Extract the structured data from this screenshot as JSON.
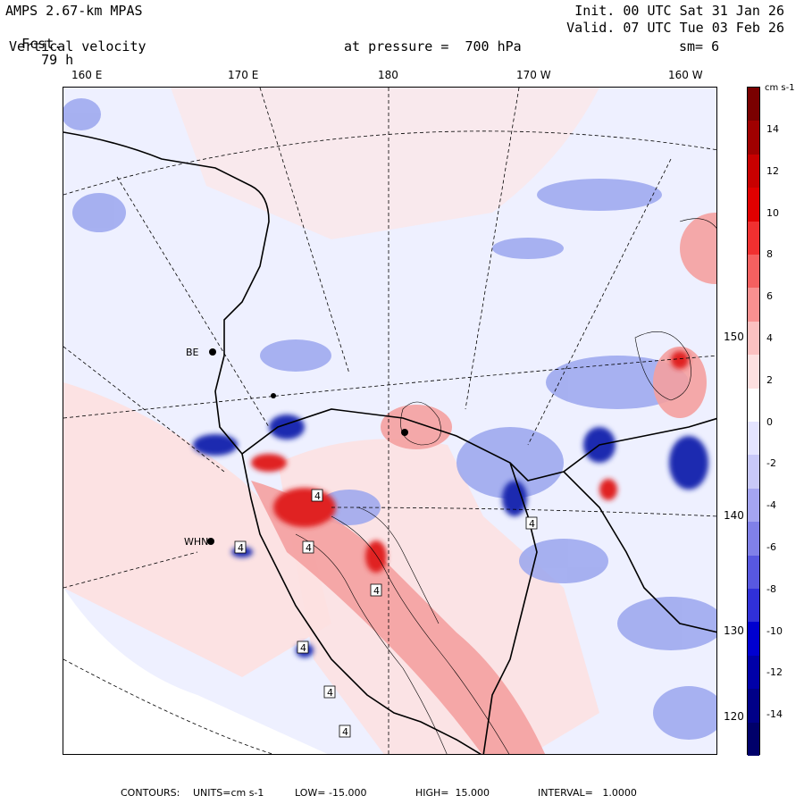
{
  "header": {
    "model": "AMPS 2.67-km MPAS",
    "fcst_label": "Fcst.",
    "fcst_value": "79 h",
    "field": "Vertical velocity",
    "init": "Init. 00 UTC Sat 31 Jan 26",
    "valid": "Valid. 07 UTC Tue 03 Feb 26",
    "pressure": "at pressure =  700 hPa",
    "smooth": "sm= 6"
  },
  "lon_labels": [
    "160 E",
    "170 E",
    "180",
    "170 W",
    "160 W"
  ],
  "lat_labels": [
    "150 W",
    "140 W",
    "130 W",
    "120 W"
  ],
  "stations": [
    "BE",
    "WHN"
  ],
  "colorbar": {
    "units": "cm s-1",
    "ticks": [
      "14",
      "12",
      "10",
      "8",
      "6",
      "4",
      "2",
      "0",
      "-2",
      "-4",
      "-6",
      "-8",
      "-10",
      "-12",
      "-14"
    ],
    "colors": [
      "#7a0000",
      "#a00000",
      "#c80000",
      "#e00000",
      "#f03030",
      "#f56060",
      "#f89090",
      "#fbc0c0",
      "#fde0e0",
      "#ffffff",
      "#e4e4ff",
      "#c8c8f8",
      "#a4a4f0",
      "#8080e8",
      "#5858e0",
      "#3030d8",
      "#0000d0",
      "#0000a8",
      "#000088",
      "#00006a"
    ]
  },
  "footer": {
    "contours": "CONTOURS:",
    "units": "UNITS=cm s-1",
    "low": "LOW= -15.000",
    "high": "HIGH=  15.000",
    "interval": "INTERVAL=   1.0000"
  },
  "colors": {
    "pos": "#f4a0a0",
    "pos_strong": "#e02020",
    "neg": "#9aa6ee",
    "neg_strong": "#1a2ab0",
    "bg": "#eef0ff"
  }
}
